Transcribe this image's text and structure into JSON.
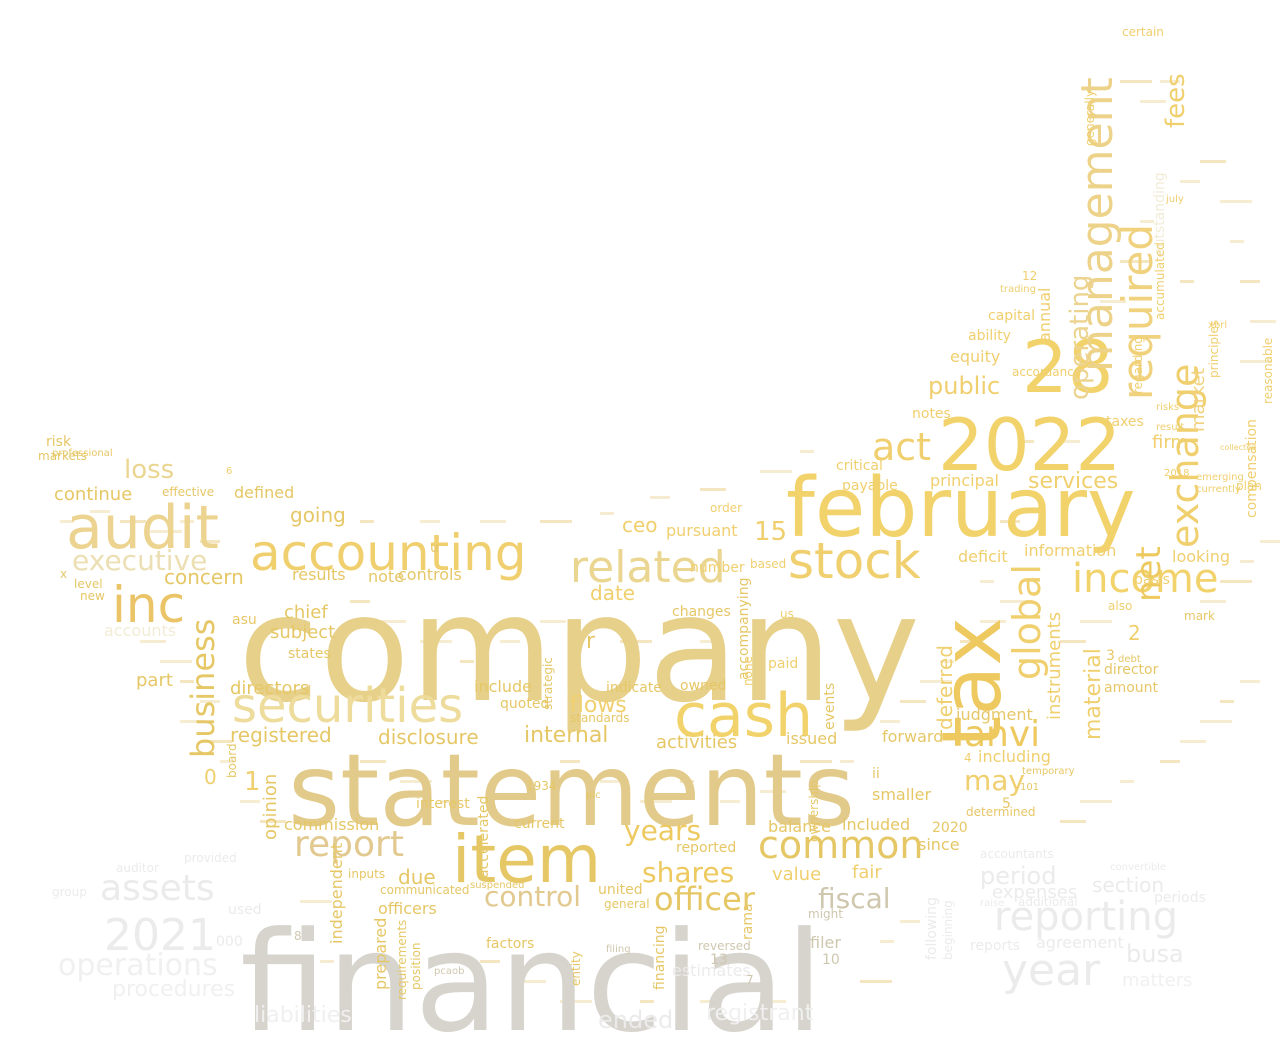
{
  "words": [
    {
      "text": "company",
      "color": "#e7d08a"
    },
    {
      "text": "financial",
      "color": "#d6d4cd"
    },
    {
      "text": "statements",
      "color": "#e2ca8a"
    },
    {
      "text": "february",
      "color": "#f2d26a"
    },
    {
      "text": "2022",
      "color": "#f2d26a"
    },
    {
      "text": "28",
      "color": "#f2d26a"
    },
    {
      "text": "tax",
      "color": "#edc95f"
    },
    {
      "text": "audit",
      "color": "#ecd490"
    },
    {
      "text": "accounting",
      "color": "#f0cf6e"
    },
    {
      "text": "item",
      "color": "#e6c766"
    },
    {
      "text": "cash",
      "color": "#f2d26a"
    },
    {
      "text": "stock",
      "color": "#f0cf6e"
    },
    {
      "text": "securities",
      "color": "#eedc9c"
    },
    {
      "text": "related",
      "color": "#ead690"
    },
    {
      "text": "income",
      "color": "#f2d26a"
    },
    {
      "text": "management",
      "color": "#edd289"
    },
    {
      "text": "required",
      "color": "#f0d27e"
    },
    {
      "text": "exchange",
      "color": "#f0cf6e"
    },
    {
      "text": "inc",
      "color": "#eac466"
    },
    {
      "text": "report",
      "color": "#e2c98f"
    },
    {
      "text": "common",
      "color": "#e6c766"
    },
    {
      "text": "reporting",
      "color": "#ebebeb"
    },
    {
      "text": "assets",
      "color": "#ebebeb"
    },
    {
      "text": "2021",
      "color": "#ebebeb"
    },
    {
      "text": "year",
      "color": "#ebebeb"
    },
    {
      "text": "operations",
      "color": "#f0f0f0"
    },
    {
      "text": "executive",
      "color": "#ecdfb4"
    },
    {
      "text": "business",
      "color": "#e6c766"
    },
    {
      "text": "global",
      "color": "#f0cf6e"
    },
    {
      "text": "anvi",
      "color": "#edc95f"
    },
    {
      "text": "act",
      "color": "#f0cf6e"
    },
    {
      "text": "loss",
      "color": "#ead690"
    },
    {
      "text": "net",
      "color": "#edc95f"
    },
    {
      "text": "operating",
      "color": "#ecd490"
    },
    {
      "text": "fees",
      "color": "#f0cf6e"
    },
    {
      "text": "officer",
      "color": "#e6c766"
    },
    {
      "text": "years",
      "color": "#edc95f"
    },
    {
      "text": "shares",
      "color": "#edc95f"
    },
    {
      "text": "control",
      "color": "#e2c98f"
    },
    {
      "text": "fiscal",
      "color": "#cfc7ae"
    },
    {
      "text": "may",
      "color": "#f0cf6e"
    },
    {
      "text": "period",
      "color": "#ebebeb"
    },
    {
      "text": "section",
      "color": "#ebebeb"
    },
    {
      "text": "busa",
      "color": "#ebebeb"
    },
    {
      "text": "flows",
      "color": "#f0cf6e"
    },
    {
      "text": "internal",
      "color": "#e6c766"
    },
    {
      "text": "disclosure",
      "color": "#e6c766"
    },
    {
      "text": "registered",
      "color": "#e6c766"
    },
    {
      "text": "directors",
      "color": "#e6c766"
    },
    {
      "text": "concern",
      "color": "#e6c766"
    },
    {
      "text": "continue",
      "color": "#e6c766"
    },
    {
      "text": "going",
      "color": "#e6c766"
    },
    {
      "text": "due",
      "color": "#e6c766"
    },
    {
      "text": "date",
      "color": "#f0cf6e"
    },
    {
      "text": "ceo",
      "color": "#f0cf6e"
    },
    {
      "text": "15",
      "color": "#f0cf6e"
    },
    {
      "text": "public",
      "color": "#f0cf6e"
    },
    {
      "text": "deferred",
      "color": "#f0cf6e"
    },
    {
      "text": "material",
      "color": "#f0cf6e"
    },
    {
      "text": "market",
      "color": "#f0d27e"
    },
    {
      "text": "services",
      "color": "#f0cf6e"
    },
    {
      "text": "firm",
      "color": "#f0cf6e"
    },
    {
      "text": "value",
      "color": "#f0cf6e"
    },
    {
      "text": "fair",
      "color": "#f0cf6e"
    },
    {
      "text": "judgment",
      "color": "#e6c766"
    },
    {
      "text": "activities",
      "color": "#e6c766"
    },
    {
      "text": "opinion",
      "color": "#e6c766"
    },
    {
      "text": "commission",
      "color": "#e6c766"
    },
    {
      "text": "balance",
      "color": "#e6c766"
    },
    {
      "text": "included",
      "color": "#e6c766"
    },
    {
      "text": "results",
      "color": "#e6c766"
    },
    {
      "text": "controls",
      "color": "#e6c766"
    },
    {
      "text": "subject",
      "color": "#e6c766"
    },
    {
      "text": "chief",
      "color": "#e6c766"
    },
    {
      "text": "part",
      "color": "#e6c766"
    },
    {
      "text": "note",
      "color": "#e6c766"
    },
    {
      "text": "defined",
      "color": "#e6c766"
    },
    {
      "text": "pursuant",
      "color": "#f0cf6e"
    },
    {
      "text": "number",
      "color": "#f0cf6e"
    },
    {
      "text": "information",
      "color": "#f0cf6e"
    },
    {
      "text": "looking",
      "color": "#f0cf6e"
    },
    {
      "text": "director",
      "color": "#e6c766"
    },
    {
      "text": "amount",
      "color": "#e6c766"
    },
    {
      "text": "instruments",
      "color": "#f0cf6e"
    },
    {
      "text": "accounts",
      "color": "#f2ecd6"
    },
    {
      "text": "forward",
      "color": "#e6c766"
    },
    {
      "text": "issued",
      "color": "#e6c766"
    },
    {
      "text": "including",
      "color": "#f0cf6e"
    },
    {
      "text": "since",
      "color": "#e6c766"
    },
    {
      "text": "filer",
      "color": "#cfc7ae"
    },
    {
      "text": "smaller",
      "color": "#e6c766"
    },
    {
      "text": "interest",
      "color": "#e6c766"
    },
    {
      "text": "current",
      "color": "#e6c766"
    },
    {
      "text": "officers",
      "color": "#e6c766"
    },
    {
      "text": "factors",
      "color": "#e6c766"
    },
    {
      "text": "independent",
      "color": "#e6c766"
    },
    {
      "text": "prepared",
      "color": "#e6c766"
    },
    {
      "text": "include",
      "color": "#e6c766"
    },
    {
      "text": "reported",
      "color": "#e6c766"
    },
    {
      "text": "accompanying",
      "color": "#e6c766"
    },
    {
      "text": "events",
      "color": "#e6c766"
    },
    {
      "text": "accelerated",
      "color": "#e6c766"
    },
    {
      "text": "expenses",
      "color": "#ebebeb"
    },
    {
      "text": "estimates",
      "color": "#ebebeb"
    },
    {
      "text": "ended",
      "color": "#ebebeb"
    },
    {
      "text": "agreement",
      "color": "#ebebeb"
    },
    {
      "text": "matters",
      "color": "#f0f0f0"
    },
    {
      "text": "procedures",
      "color": "#f0f0f0"
    },
    {
      "text": "liabilities",
      "color": "#f0f0f0"
    },
    {
      "text": "registrant",
      "color": "#f0f0f0"
    },
    {
      "text": "000",
      "color": "#ebebeb"
    },
    {
      "text": "used",
      "color": "#ebebeb"
    },
    {
      "text": "reports",
      "color": "#ebebeb"
    },
    {
      "text": "compensation",
      "color": "#f0cf6e"
    },
    {
      "text": "taxes",
      "color": "#f0cf6e"
    },
    {
      "text": "equity",
      "color": "#f0cf6e"
    },
    {
      "text": "annual",
      "color": "#f0cf6e"
    },
    {
      "text": "ability",
      "color": "#f0cf6e"
    },
    {
      "text": "capital",
      "color": "#f0cf6e"
    },
    {
      "text": "principal",
      "color": "#f0cf6e"
    },
    {
      "text": "deficit",
      "color": "#f0cf6e"
    },
    {
      "text": "critical",
      "color": "#f0cf6e"
    },
    {
      "text": "payable",
      "color": "#f0cf6e"
    },
    {
      "text": "notes",
      "color": "#f0cf6e"
    },
    {
      "text": "states",
      "color": "#e6c766"
    },
    {
      "text": "standards",
      "color": "#e6c766"
    },
    {
      "text": "risk",
      "color": "#e6c766"
    },
    {
      "text": "markets",
      "color": "#e6c766"
    },
    {
      "text": "level",
      "color": "#e6c766"
    },
    {
      "text": "new",
      "color": "#e6c766"
    },
    {
      "text": "effective",
      "color": "#e6c766"
    },
    {
      "text": "board",
      "color": "#e6c766"
    },
    {
      "text": "asu",
      "color": "#e6c766"
    },
    {
      "text": "certain",
      "color": "#f0cf6e"
    },
    {
      "text": "outstanding",
      "color": "#f2ecd6"
    },
    {
      "text": "accordance",
      "color": "#f0cf6e"
    },
    {
      "text": "regarding",
      "color": "#f0cf6e"
    },
    {
      "text": "accumulated",
      "color": "#f0cf6e"
    },
    {
      "text": "principles",
      "color": "#f0cf6e"
    },
    {
      "text": "reasonable",
      "color": "#f0cf6e"
    },
    {
      "text": "generally",
      "color": "#f0cf6e"
    },
    {
      "text": "plan",
      "color": "#f0cf6e"
    },
    {
      "text": "july",
      "color": "#f0cf6e"
    },
    {
      "text": "united",
      "color": "#e6c766"
    },
    {
      "text": "general",
      "color": "#e6c766"
    },
    {
      "text": "financing",
      "color": "#e6c766"
    },
    {
      "text": "entity",
      "color": "#e6c766"
    },
    {
      "text": "position",
      "color": "#e6c766"
    },
    {
      "text": "requirements",
      "color": "#e6c766"
    },
    {
      "text": "communicated",
      "color": "#e6c766"
    },
    {
      "text": "inputs",
      "color": "#e6c766"
    },
    {
      "text": "might",
      "color": "#cfc7ae"
    },
    {
      "text": "following",
      "color": "#ebebeb"
    },
    {
      "text": "beginning",
      "color": "#ebebeb"
    },
    {
      "text": "determined",
      "color": "#e6c766"
    },
    {
      "text": "2020",
      "color": "#e6c766"
    },
    {
      "text": "ownership",
      "color": "#e6c766"
    },
    {
      "text": "owned",
      "color": "#e6c766"
    },
    {
      "text": "indicate",
      "color": "#e6c766"
    },
    {
      "text": "changes",
      "color": "#e6c766"
    },
    {
      "text": "quoted",
      "color": "#e6c766"
    },
    {
      "text": "strategic",
      "color": "#e6c766"
    },
    {
      "text": "1934",
      "color": "#e6c766"
    },
    {
      "text": "plc",
      "color": "#e6c766"
    },
    {
      "text": "paid",
      "color": "#f0cf6e"
    },
    {
      "text": "based",
      "color": "#f0cf6e"
    },
    {
      "text": "none",
      "color": "#f0cf6e"
    },
    {
      "text": "us",
      "color": "#f0cf6e"
    },
    {
      "text": "order",
      "color": "#f0cf6e"
    },
    {
      "text": "trading",
      "color": "#f0cf6e"
    },
    {
      "text": "12",
      "color": "#f0cf6e"
    },
    {
      "text": "xbrl",
      "color": "#f0cf6e"
    },
    {
      "text": "risks",
      "color": "#f0cf6e"
    },
    {
      "text": "result",
      "color": "#f0cf6e"
    },
    {
      "text": "2018",
      "color": "#f0cf6e"
    },
    {
      "text": "emerging",
      "color": "#f0cf6e"
    },
    {
      "text": "currently",
      "color": "#f0cf6e"
    },
    {
      "text": "basis",
      "color": "#f0cf6e"
    },
    {
      "text": "mark",
      "color": "#e6c766"
    },
    {
      "text": "also",
      "color": "#f0cf6e"
    },
    {
      "text": "debt",
      "color": "#e6c766"
    },
    {
      "text": "professional",
      "color": "#e6c766"
    },
    {
      "text": "2",
      "color": "#f0cf6e"
    },
    {
      "text": "3",
      "color": "#e6c766"
    },
    {
      "text": "4",
      "color": "#f0cf6e"
    },
    {
      "text": "5",
      "color": "#e6c766"
    },
    {
      "text": "1",
      "color": "#f0cf6e"
    },
    {
      "text": "0",
      "color": "#f0cf6e"
    },
    {
      "text": "r",
      "color": "#e6c766"
    },
    {
      "text": "ii",
      "color": "#e6c766"
    },
    {
      "text": "13",
      "color": "#cfc7ae"
    },
    {
      "text": "10",
      "color": "#cfc7ae"
    },
    {
      "text": "rama",
      "color": "#e6c766"
    },
    {
      "text": "reversed",
      "color": "#cfc7ae"
    },
    {
      "text": "suspended",
      "color": "#e6c766"
    },
    {
      "text": "pcaob",
      "color": "#cfc7ae"
    },
    {
      "text": "filing",
      "color": "#cfc7ae"
    },
    {
      "text": "raise",
      "color": "#ebebeb"
    },
    {
      "text": "additional",
      "color": "#ebebeb"
    },
    {
      "text": "periods",
      "color": "#ebebeb"
    },
    {
      "text": "group",
      "color": "#ebebeb"
    },
    {
      "text": "auditor",
      "color": "#ebebeb"
    },
    {
      "text": "provided",
      "color": "#ebebeb"
    },
    {
      "text": "accountants",
      "color": "#ebebeb"
    },
    {
      "text": "convertible",
      "color": "#ebebeb"
    },
    {
      "text": "x",
      "color": "#e6c766"
    },
    {
      "text": "u",
      "color": "#e6c766"
    },
    {
      "text": "8",
      "color": "#cfc7ae"
    },
    {
      "text": "6",
      "color": "#f0cf6e"
    },
    {
      "text": "7",
      "color": "#cfc7ae"
    },
    {
      "text": "101",
      "color": "#e6c766"
    },
    {
      "text": "temporary",
      "color": "#e6c766"
    },
    {
      "text": "collected",
      "color": "#f0cf6e"
    }
  ]
}
